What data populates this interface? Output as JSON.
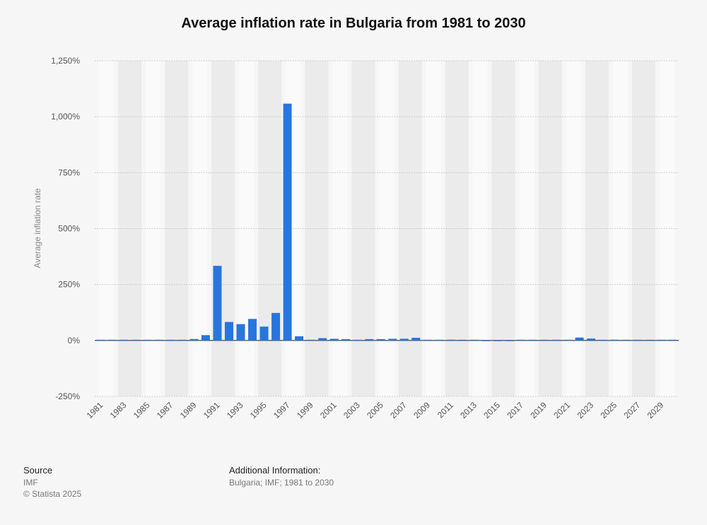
{
  "chart_data": {
    "type": "bar",
    "title": "Average inflation rate in Bulgaria from 1981 to 2030",
    "ylabel": "Average inflation rate",
    "xlabel": "",
    "ylim": [
      -250,
      1250
    ],
    "yticks": [
      1250,
      1000,
      750,
      500,
      250,
      0,
      -250
    ],
    "ytick_labels": [
      "1,250%",
      "1,000%",
      "750%",
      "500%",
      "250%",
      "0%",
      "-250%"
    ],
    "xtick_labels": [
      "1981",
      "1983",
      "1985",
      "1987",
      "1989",
      "1991",
      "1993",
      "1995",
      "1997",
      "1999",
      "2001",
      "2003",
      "2005",
      "2007",
      "2009",
      "2011",
      "2013",
      "2015",
      "2017",
      "2019",
      "2021",
      "2023",
      "2025",
      "2027",
      "2029"
    ],
    "categories": [
      "1981",
      "1982",
      "1983",
      "1984",
      "1985",
      "1986",
      "1987",
      "1988",
      "1989",
      "1990",
      "1991",
      "1992",
      "1993",
      "1994",
      "1995",
      "1996",
      "1997",
      "1998",
      "1999",
      "2000",
      "2001",
      "2002",
      "2003",
      "2004",
      "2005",
      "2006",
      "2007",
      "2008",
      "2009",
      "2010",
      "2011",
      "2012",
      "2013",
      "2014",
      "2015",
      "2016",
      "2017",
      "2018",
      "2019",
      "2020",
      "2021",
      "2022",
      "2023",
      "2024",
      "2025",
      "2026",
      "2027",
      "2028",
      "2029",
      "2030"
    ],
    "values": [
      0.5,
      0.3,
      1.0,
      0.7,
      1.7,
      3.1,
      2.7,
      2.7,
      6.4,
      23.8,
      333.5,
      82.6,
      73.0,
      96.3,
      62.0,
      123.0,
      1058.4,
      18.7,
      2.6,
      10.3,
      7.4,
      5.8,
      2.3,
      6.1,
      6.0,
      7.4,
      7.6,
      12.0,
      2.5,
      3.0,
      3.4,
      2.4,
      0.4,
      -1.6,
      -1.1,
      -1.3,
      1.2,
      2.6,
      2.5,
      1.2,
      2.8,
      13.0,
      8.6,
      2.6,
      3.5,
      2.4,
      2.2,
      2.0,
      2.0,
      2.0
    ],
    "colors": {
      "bar": "#2876dd",
      "band": "#ebebeb",
      "grid": "#c4c4c4",
      "axis": "#333333"
    },
    "grid": true,
    "legend": "none"
  },
  "footer": {
    "source_heading": "Source",
    "source_name": "IMF",
    "copyright": "© Statista 2025",
    "additional_heading": "Additional Information:",
    "additional_text": "Bulgaria; IMF; 1981 to 2030"
  }
}
